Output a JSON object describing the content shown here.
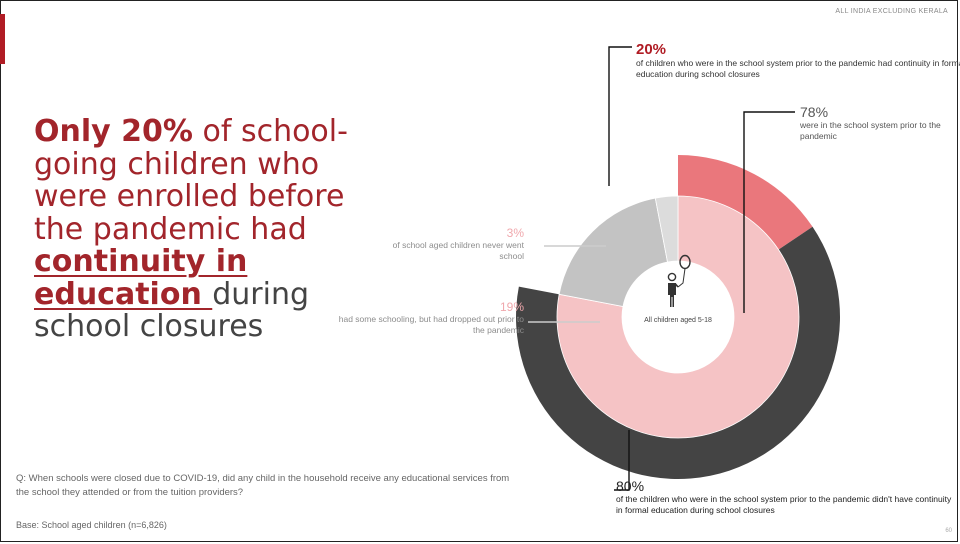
{
  "header": {
    "tag": "ALL INDIA EXCLUDING KERALA"
  },
  "headline": {
    "part1": "Only 20%",
    "part2": " of school-going children who were enrolled before the pandemic had ",
    "part3": "continuity in education ",
    "part4": "during school closures"
  },
  "colors": {
    "accent": "#b01c24",
    "continuity_20": "#ea777c",
    "no_continuity_80": "#444444",
    "in_school_78": "#f5c3c5",
    "dropped_19": "#c3c3c3",
    "never_3": "#dcdcdc"
  },
  "chart_data": [
    {
      "type": "pie",
      "ring": "outer",
      "slices": [
        {
          "label": "20%",
          "value": 20,
          "color": "#ea777c"
        },
        {
          "label": "80%",
          "value": 80,
          "color": "#444444"
        }
      ]
    },
    {
      "type": "pie",
      "ring": "inner",
      "slices": [
        {
          "label": "78%",
          "value": 78,
          "color": "#f5c3c5"
        },
        {
          "label": "19%",
          "value": 19,
          "color": "#c3c3c3"
        },
        {
          "label": "3%",
          "value": 3,
          "color": "#dcdcdc"
        }
      ]
    }
  ],
  "annotations": {
    "a20": {
      "pct": "20%",
      "desc": "of children who were in the school system prior to the pandemic had continuity in formal education during school closures"
    },
    "a78": {
      "pct": "78%",
      "desc": "were in the school system prior to the pandemic"
    },
    "a3": {
      "pct": "3%",
      "desc": "of school aged children never went school"
    },
    "a19": {
      "pct": "19%",
      "desc": "had some schooling, but had dropped out prior to the pandemic"
    },
    "a80": {
      "pct": "80%",
      "desc": "of the children who were in the school system prior to the pandemic didn't have continuity in formal education during school closures"
    }
  },
  "center": {
    "label": "All children aged 5-18",
    "icon": "child-with-balloon-icon"
  },
  "footer": {
    "question": "Q: When schools were closed due to COVID-19, did any child in the household receive any educational services from the school they attended or from the tuition providers?",
    "base": "Base: School aged children (n=6,826)",
    "page": "60"
  }
}
